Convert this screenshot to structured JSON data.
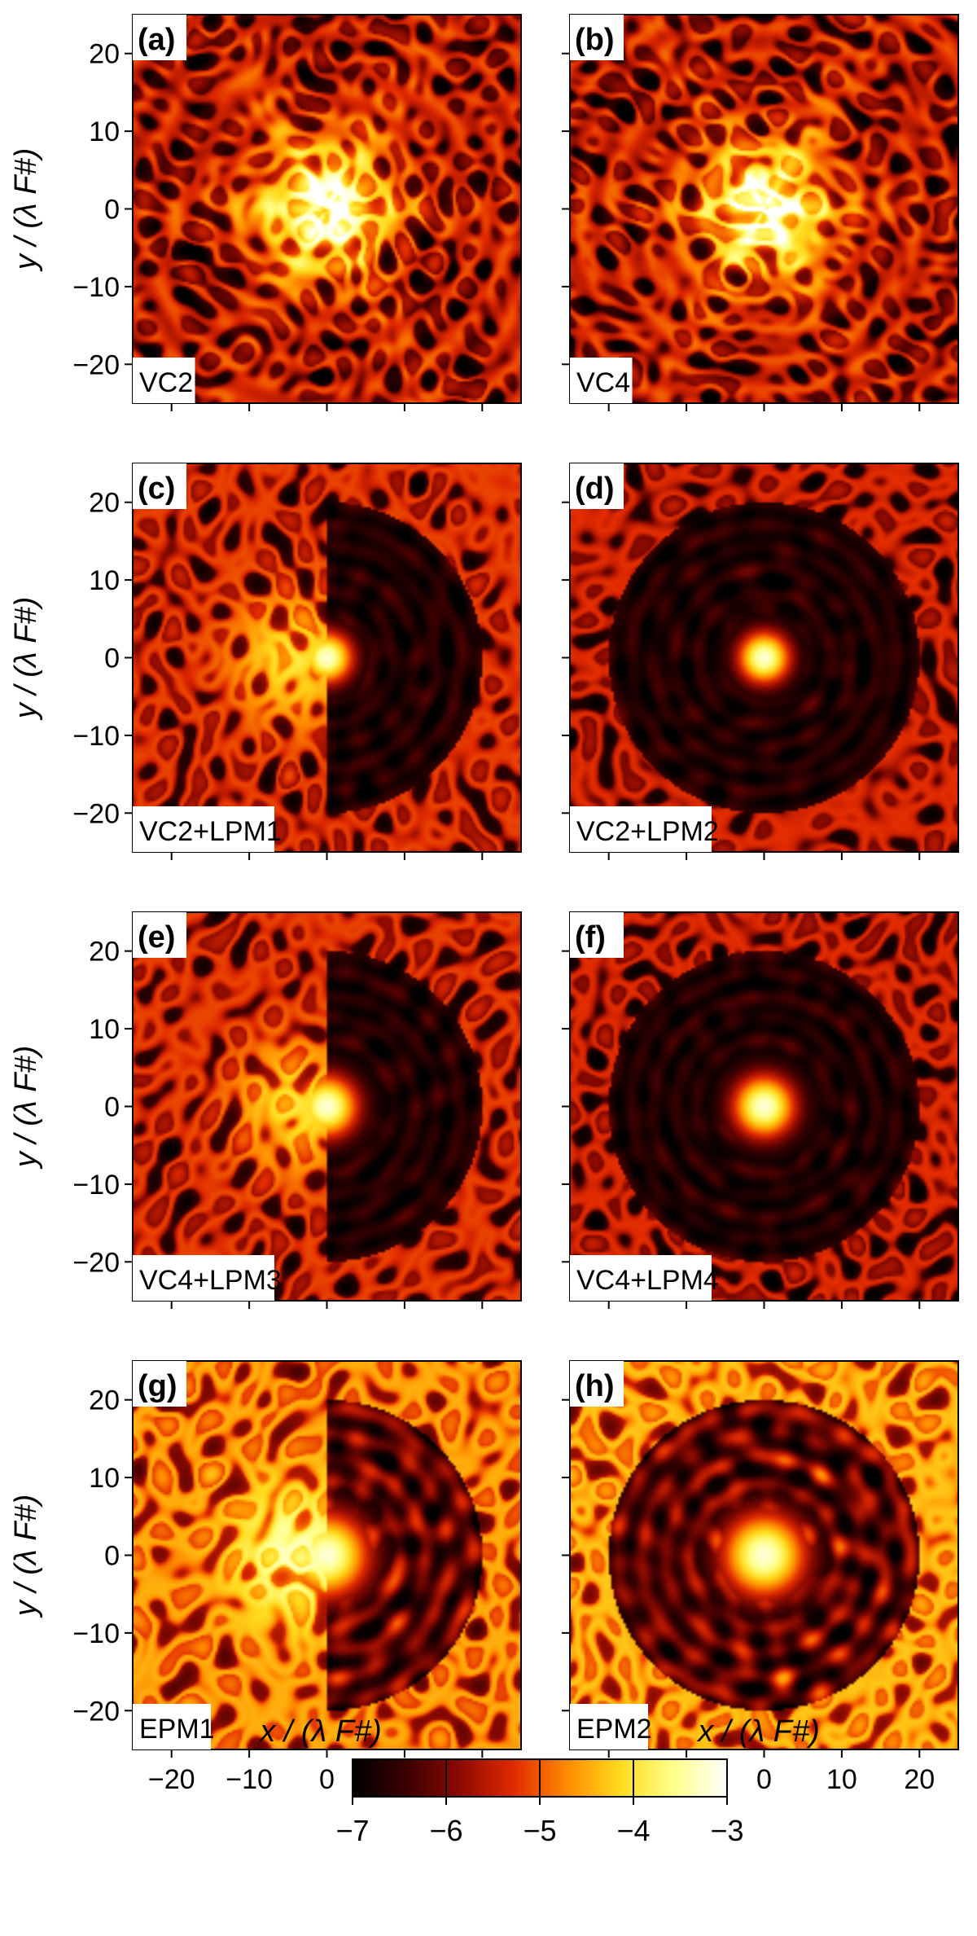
{
  "chart_data": {
    "type": "heatmap",
    "x_axis_label": "x / (λ F#)",
    "y_axis_label": "y / (λ F#)",
    "xlim": [
      -25,
      25
    ],
    "ylim": [
      -25,
      25
    ],
    "x_ticks": [
      -20,
      -10,
      0,
      10,
      20
    ],
    "y_ticks": [
      -20,
      -10,
      0,
      10,
      20
    ],
    "tick_labels_x": [
      "−20",
      "−10",
      "0",
      "10",
      "20"
    ],
    "tick_labels_y": [
      "−20",
      "−10",
      "0",
      "10",
      "20"
    ],
    "colorbar": {
      "range": [
        -7,
        -3
      ],
      "ticks": [
        -7,
        -6,
        -5,
        -4,
        -3
      ],
      "tick_labels": [
        "−7",
        "−6",
        "−5",
        "−4",
        "−3"
      ],
      "colormap": [
        "#000000",
        "#3a0000",
        "#8b0a00",
        "#e02a00",
        "#ff8a00",
        "#ffdb1e",
        "#ffff8a",
        "#ffffff"
      ]
    },
    "panels": [
      {
        "letter": "(a)",
        "label": "VC2",
        "kind": "star6",
        "core": 5,
        "dark_hole": false,
        "bg_level": 0.42
      },
      {
        "letter": "(b)",
        "label": "VC4",
        "kind": "star6",
        "core": 7,
        "dark_hole": false,
        "bg_level": 0.42
      },
      {
        "letter": "(c)",
        "label": "VC2+LPM1",
        "kind": "half",
        "core": 2.5,
        "dark_hole": true,
        "hole_radius": 20,
        "bg_level": 0.45
      },
      {
        "letter": "(d)",
        "label": "VC2+LPM2",
        "kind": "full",
        "core": 2.5,
        "dark_hole": true,
        "hole_radius": 20,
        "bg_level": 0.42
      },
      {
        "letter": "(e)",
        "label": "VC4+LPM3",
        "kind": "half",
        "core": 3,
        "dark_hole": true,
        "hole_radius": 20,
        "bg_level": 0.45
      },
      {
        "letter": "(f)",
        "label": "VC4+LPM4",
        "kind": "full",
        "core": 3,
        "dark_hole": true,
        "hole_radius": 20,
        "bg_level": 0.42
      },
      {
        "letter": "(g)",
        "label": "EPM1",
        "kind": "half",
        "core": 4,
        "dark_hole": true,
        "hole_radius": 20,
        "bg_level": 0.62
      },
      {
        "letter": "(h)",
        "label": "EPM2",
        "kind": "full",
        "core": 4,
        "dark_hole": true,
        "hole_radius": 20,
        "bg_level": 0.66
      }
    ]
  }
}
